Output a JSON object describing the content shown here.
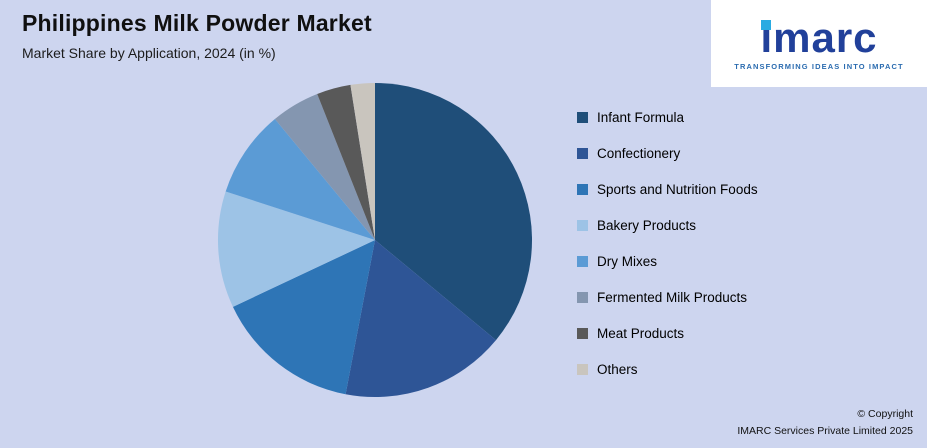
{
  "header": {
    "title": "Philippines Milk Powder Market",
    "subtitle": "Market Share by Application, 2024 (in %)"
  },
  "logo": {
    "word": "imarc",
    "tagline": "TRANSFORMING IDEAS INTO IMPACT"
  },
  "chart_data": {
    "type": "pie",
    "title": "Philippines Milk Powder Market",
    "subtitle": "Market Share by Application, 2024 (in %)",
    "unit": "%",
    "categories": [
      "Infant Formula",
      "Confectionery",
      "Sports and Nutrition Foods",
      "Bakery Products",
      "Dry Mixes",
      "Fermented Milk Products",
      "Meat Products",
      "Others"
    ],
    "values": [
      36,
      17,
      15,
      12,
      9,
      5,
      3.5,
      2.5
    ],
    "colors": [
      "#1F4E79",
      "#2E5596",
      "#2E75B6",
      "#9DC3E6",
      "#5B9BD5",
      "#8496B0",
      "#595959",
      "#C9C5BE"
    ],
    "start_angle_deg": 0,
    "direction": "clockwise",
    "legend_position": "right",
    "data_labels": false
  },
  "footer": {
    "copyright_line1": "© Copyright",
    "copyright_line2": "IMARC Services Private Limited 2025"
  },
  "colors": {
    "background": "#CDD5EF",
    "logo_text": "#21409A",
    "logo_dot": "#29ABE2",
    "logo_tagline": "#2B6CB0"
  }
}
